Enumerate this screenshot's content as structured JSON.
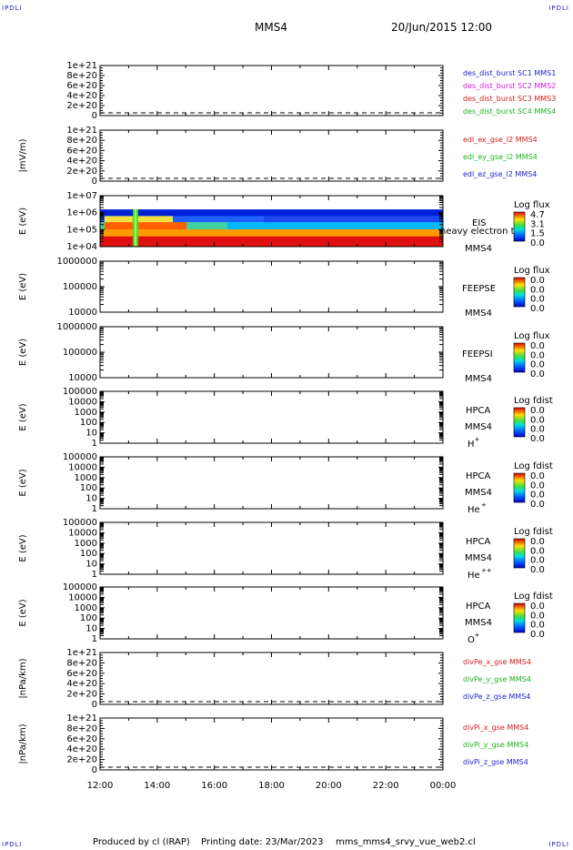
{
  "corner_tag": "IPDLI",
  "header": {
    "spacecraft": "MMS4",
    "datetime": "20/Jun/2015 12:00"
  },
  "footer": {
    "produced_by": "Produced by cl (IRAP)",
    "printing_date": "Printing date: 23/Mar/2023",
    "script_name": "mms_mms4_srvy_vue_web2.cl"
  },
  "chart_data": [
    {
      "type": "line",
      "ylabel": "",
      "ylim": [
        0,
        1e+21
      ],
      "yticks": [
        "0",
        "2e+20",
        "4e+20",
        "6e+20",
        "8e+20",
        "1e+21"
      ],
      "series": [
        {
          "name": "des_dist_burst SC1 MMS1",
          "color": "#1e1ec8",
          "values": []
        },
        {
          "name": "des_dist_burst SC2 MMS2",
          "color": "#d21ed2",
          "values": []
        },
        {
          "name": "des_dist_burst SC3 MMS3",
          "color": "#d21e1e",
          "values": []
        },
        {
          "name": "des_dist_burst SC4 MMS4",
          "color": "#1eb41e",
          "values": []
        }
      ]
    },
    {
      "type": "line",
      "ylabel": "|mV/m)",
      "ylim": [
        0,
        1e+21
      ],
      "yticks": [
        "0",
        "2e+20",
        "4e+20",
        "6e+20",
        "8e+20",
        "1e+21"
      ],
      "series": [
        {
          "name": "edl_ex_gse_l2 MMS4",
          "color": "#d21e1e",
          "values": []
        },
        {
          "name": "edl_ey_gse_l2 MMS4",
          "color": "#1eb41e",
          "values": []
        },
        {
          "name": "edl_ez_gse_l2 MMS4",
          "color": "#1e1ec8",
          "values": []
        }
      ]
    },
    {
      "type": "heatmap",
      "ylabel": "E (eV)",
      "scale": "log",
      "yticks": [
        "1e+04",
        "1e+05",
        "1e+06",
        "1e+07"
      ],
      "labels": [
        "EIS",
        "heavy electron tof",
        "MMS4"
      ],
      "colorbar": {
        "title": "Log flux",
        "ticks": [
          "4.7",
          "3.1",
          "1.5",
          "0.0"
        ]
      }
    },
    {
      "type": "heatmap",
      "ylabel": "E (eV)",
      "scale": "log",
      "yticks": [
        "10000",
        "100000",
        "1000000"
      ],
      "labels": [
        "FEEPSE",
        "MMS4"
      ],
      "colorbar": {
        "title": "Log flux",
        "ticks": [
          "0.0",
          "0.0",
          "0.0",
          "0.0"
        ]
      }
    },
    {
      "type": "heatmap",
      "ylabel": "E (eV)",
      "scale": "log",
      "yticks": [
        "10000",
        "100000",
        "1000000"
      ],
      "labels": [
        "FEEPSI",
        "MMS4"
      ],
      "colorbar": {
        "title": "Log flux",
        "ticks": [
          "0.0",
          "0.0",
          "0.0",
          "0.0"
        ]
      }
    },
    {
      "type": "heatmap",
      "ylabel": "E (eV)",
      "scale": "log",
      "yticks": [
        "1",
        "10",
        "100",
        "1000",
        "10000",
        "100000"
      ],
      "labels": [
        "HPCA",
        "MMS4"
      ],
      "species": "H",
      "species_charge": "+",
      "colorbar": {
        "title": "Log fdist",
        "ticks": [
          "0.0",
          "0.0",
          "0.0",
          "0.0"
        ]
      }
    },
    {
      "type": "heatmap",
      "ylabel": "E (eV)",
      "scale": "log",
      "yticks": [
        "1",
        "10",
        "100",
        "1000",
        "10000",
        "100000"
      ],
      "labels": [
        "HPCA",
        "MMS4"
      ],
      "species": "He",
      "species_charge": "+",
      "colorbar": {
        "title": "Log fdist",
        "ticks": [
          "0.0",
          "0.0",
          "0.0",
          "0.0"
        ]
      }
    },
    {
      "type": "heatmap",
      "ylabel": "E (eV)",
      "scale": "log",
      "yticks": [
        "1",
        "10",
        "100",
        "1000",
        "10000",
        "100000"
      ],
      "labels": [
        "HPCA",
        "MMS4"
      ],
      "species": "He",
      "species_charge": "++",
      "colorbar": {
        "title": "Log fdist",
        "ticks": [
          "0.0",
          "0.0",
          "0.0",
          "0.0"
        ]
      }
    },
    {
      "type": "heatmap",
      "ylabel": "E (eV)",
      "scale": "log",
      "yticks": [
        "1",
        "10",
        "100",
        "1000",
        "10000",
        "100000"
      ],
      "labels": [
        "HPCA",
        "MMS4"
      ],
      "species": "O",
      "species_charge": "+",
      "colorbar": {
        "title": "Log fdist",
        "ticks": [
          "0.0",
          "0.0",
          "0.0",
          "0.0"
        ]
      }
    },
    {
      "type": "line",
      "ylabel": "|nPa/km)",
      "ylim": [
        0,
        1e+21
      ],
      "yticks": [
        "0",
        "2e+20",
        "4e+20",
        "6e+20",
        "8e+20",
        "1e+21"
      ],
      "series": [
        {
          "name": "divPe_x_gse MMS4",
          "color": "#d21e1e",
          "values": []
        },
        {
          "name": "divPe_y_gse MMS4",
          "color": "#1eb41e",
          "values": []
        },
        {
          "name": "divPe_z_gse MMS4",
          "color": "#1e1ec8",
          "values": []
        }
      ]
    },
    {
      "type": "line",
      "ylabel": "|nPa/km)",
      "ylim": [
        0,
        1e+21
      ],
      "yticks": [
        "0",
        "2e+20",
        "4e+20",
        "6e+20",
        "8e+20",
        "1e+21"
      ],
      "series": [
        {
          "name": "divPi_x_gse MMS4",
          "color": "#d21e1e",
          "values": []
        },
        {
          "name": "divPi_y_gse MMS4",
          "color": "#1eb41e",
          "values": []
        },
        {
          "name": "divPi_z_gse MMS4",
          "color": "#1e1ec8",
          "values": []
        }
      ]
    }
  ],
  "time_axis": {
    "labels": [
      "12:00",
      "14:00",
      "16:00",
      "18:00",
      "20:00",
      "22:00",
      "00:00"
    ]
  }
}
